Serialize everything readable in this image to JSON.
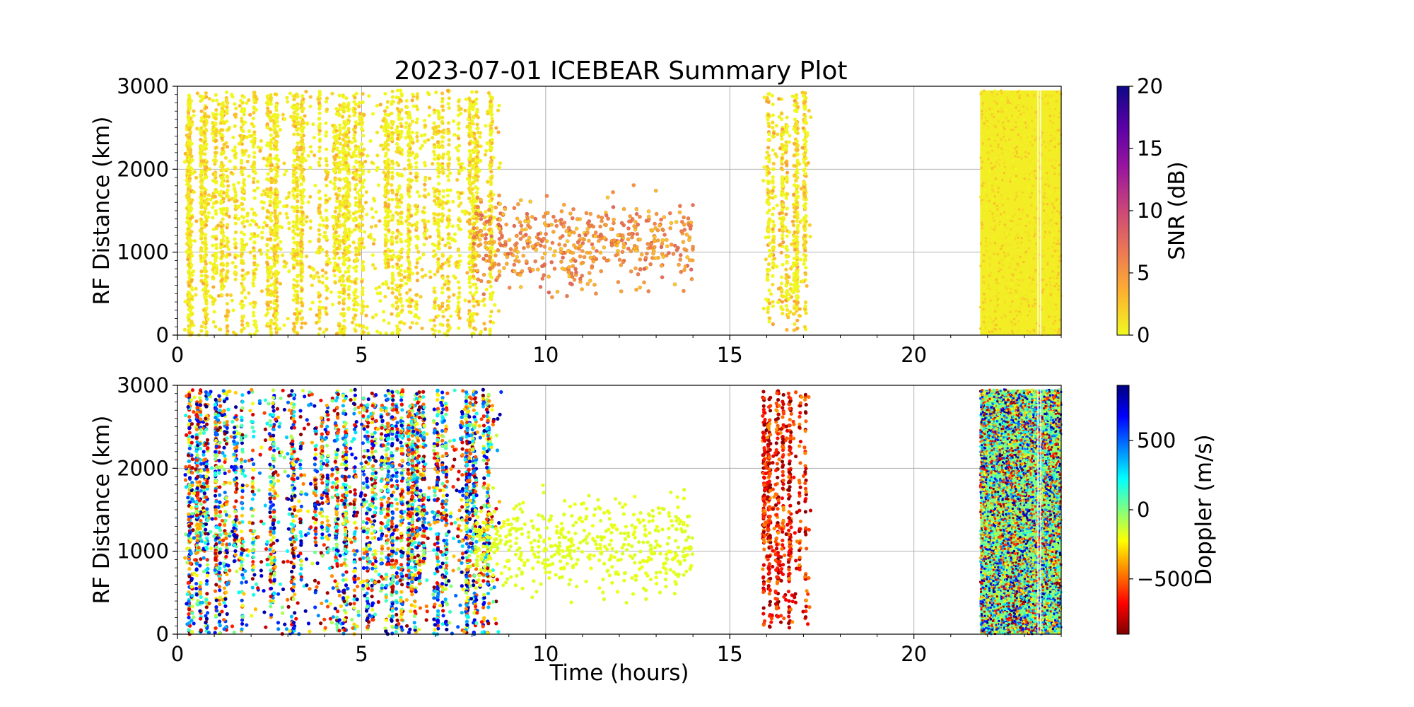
{
  "title": "2023-07-01 ICEBEAR Summary Plot",
  "chart_data": [
    {
      "type": "scatter",
      "panel": "snr",
      "xlabel": "",
      "ylabel": "RF Distance (km)",
      "xlim": [
        0,
        24
      ],
      "ylim": [
        0,
        3000
      ],
      "xticks": [
        "0",
        "5",
        "10",
        "15",
        "20"
      ],
      "yticks": [
        "0",
        "1000",
        "2000",
        "3000"
      ],
      "grid": true,
      "colorbar": {
        "label": "SNR (dB)",
        "range": [
          0,
          20
        ],
        "ticks": [
          "0",
          "5",
          "10",
          "15",
          "20"
        ],
        "colormap": "plasma_r",
        "stops": [
          "#f0f921",
          "#fdb42f",
          "#ed7953",
          "#cc4778",
          "#9c179e",
          "#5c01a6",
          "#0d0887"
        ]
      },
      "regions": [
        {
          "x": [
            0.2,
            8.8
          ],
          "y": [
            0,
            2950
          ],
          "density": "high",
          "value": [
            0,
            4
          ]
        },
        {
          "x": [
            8.0,
            14.0
          ],
          "y": [
            300,
            1900
          ],
          "density": "sparse",
          "value": [
            2,
            8
          ]
        },
        {
          "x": [
            15.9,
            17.2
          ],
          "y": [
            50,
            2950
          ],
          "density": "high",
          "value": [
            0,
            5
          ]
        },
        {
          "x": [
            21.8,
            24.0
          ],
          "y": [
            0,
            2950
          ],
          "density": "solid",
          "value": [
            0,
            3
          ]
        }
      ]
    },
    {
      "type": "scatter",
      "panel": "doppler",
      "xlabel": "Time (hours)",
      "ylabel": "RF Distance (km)",
      "xlim": [
        0,
        24
      ],
      "ylim": [
        0,
        3000
      ],
      "xticks": [
        "0",
        "5",
        "10",
        "15",
        "20"
      ],
      "yticks": [
        "0",
        "1000",
        "2000",
        "3000"
      ],
      "grid": true,
      "colorbar": {
        "label": "Doppler (m/s)",
        "range": [
          -900,
          900
        ],
        "ticks": [
          "−500",
          "0",
          "500"
        ],
        "tick_values": [
          -500,
          0,
          500
        ],
        "colormap": "jet_r",
        "stops": [
          "#7f0000",
          "#ff0000",
          "#ff8000",
          "#ffff00",
          "#80ff80",
          "#00ffff",
          "#0080ff",
          "#0000ff",
          "#00007f"
        ]
      },
      "regions": [
        {
          "x": [
            0.2,
            8.8
          ],
          "y": [
            0,
            2950
          ],
          "density": "high",
          "value": [
            -900,
            900
          ]
        },
        {
          "x": [
            8.0,
            14.0
          ],
          "y": [
            300,
            1900
          ],
          "density": "sparse",
          "value": [
            -200,
            -150
          ]
        },
        {
          "x": [
            15.9,
            17.2
          ],
          "y": [
            50,
            2950
          ],
          "density": "high",
          "value": [
            -900,
            -400
          ]
        },
        {
          "x": [
            21.8,
            24.0
          ],
          "y": [
            0,
            2950
          ],
          "density": "solid",
          "value": [
            -900,
            900
          ]
        }
      ]
    }
  ]
}
